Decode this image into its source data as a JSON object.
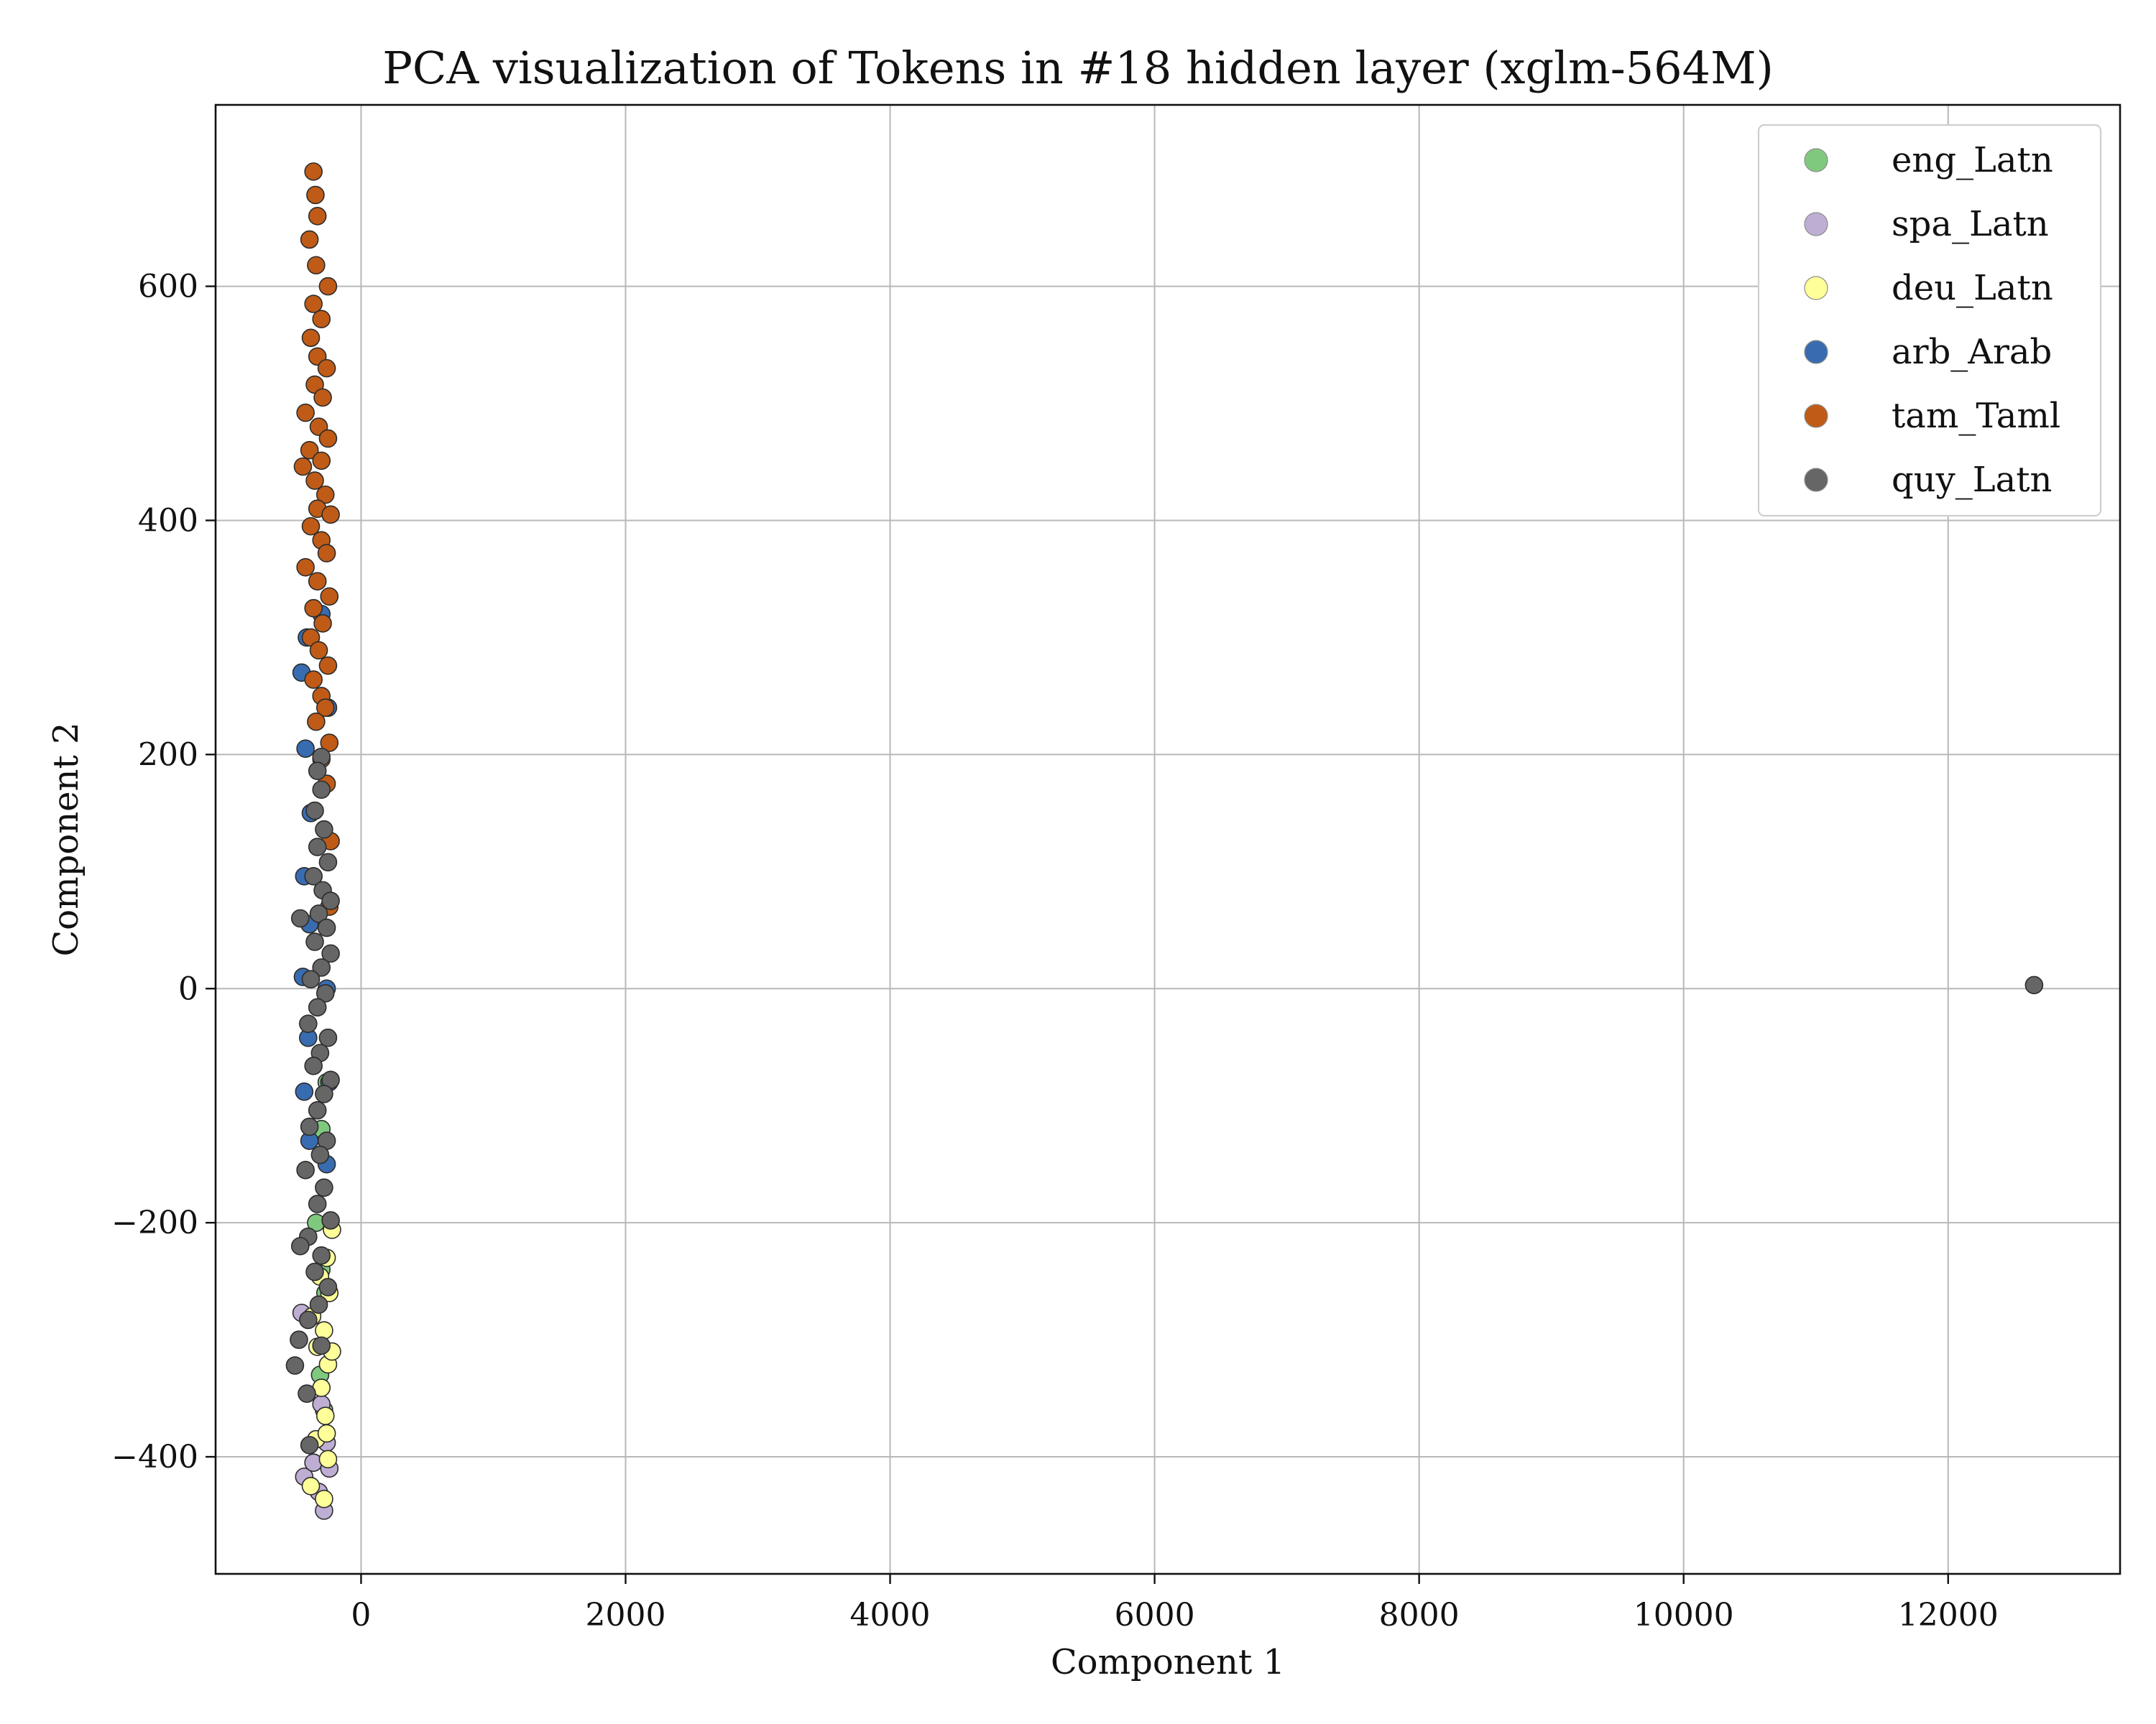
{
  "chart_data": {
    "type": "scatter",
    "title": "PCA visualization of Tokens in #18 hidden layer (xglm-564M)",
    "xlabel": "Component 1",
    "ylabel": "Component 2",
    "xlim": [
      -1100,
      13300
    ],
    "ylim": [
      -500,
      755
    ],
    "x_ticks": [
      0,
      2000,
      4000,
      6000,
      8000,
      10000,
      12000
    ],
    "x_tick_labels": [
      "0",
      "2000",
      "4000",
      "6000",
      "8000",
      "10000",
      "12000"
    ],
    "y_ticks": [
      -400,
      -200,
      0,
      200,
      400,
      600
    ],
    "y_tick_labels": [
      "−400",
      "−200",
      "0",
      "200",
      "400",
      "600"
    ],
    "grid": true,
    "legend_position": "top-right",
    "series": [
      {
        "name": "eng_Latn",
        "color": "#7fc97f",
        "points": [
          [
            -300,
            -120
          ],
          [
            -340,
            -200
          ],
          [
            -270,
            -260
          ],
          [
            -310,
            -330
          ],
          [
            -280,
            -360
          ],
          [
            -300,
            -240
          ],
          [
            -260,
            -80
          ]
        ]
      },
      {
        "name": "spa_Latn",
        "color": "#beaed4",
        "points": [
          [
            -430,
            -417
          ],
          [
            -360,
            -405
          ],
          [
            -280,
            -446
          ],
          [
            -320,
            -430
          ],
          [
            -240,
            -410
          ],
          [
            -450,
            -277
          ],
          [
            -260,
            -388
          ],
          [
            -300,
            -355
          ]
        ]
      },
      {
        "name": "deu_Latn",
        "color": "#ffff99",
        "points": [
          [
            -280,
            -436
          ],
          [
            -380,
            -425
          ],
          [
            -250,
            -402
          ],
          [
            -340,
            -385
          ],
          [
            -270,
            -365
          ],
          [
            -300,
            -341
          ],
          [
            -250,
            -321
          ],
          [
            -330,
            -306
          ],
          [
            -280,
            -292
          ],
          [
            -370,
            -280
          ],
          [
            -240,
            -260
          ],
          [
            -310,
            -246
          ],
          [
            -260,
            -230
          ],
          [
            -220,
            -206
          ],
          [
            -260,
            -380
          ],
          [
            -220,
            -310
          ]
        ]
      },
      {
        "name": "arb_Arab",
        "color": "#386cb0",
        "points": [
          [
            -450,
            270
          ],
          [
            -420,
            205
          ],
          [
            -380,
            150
          ],
          [
            -430,
            96
          ],
          [
            -390,
            55
          ],
          [
            -440,
            10
          ],
          [
            -400,
            -42
          ],
          [
            -430,
            -88
          ],
          [
            -390,
            -130
          ],
          [
            -260,
            -150
          ],
          [
            -250,
            240
          ],
          [
            -300,
            320
          ],
          [
            -410,
            300
          ],
          [
            -260,
            0
          ],
          [
            -240,
            -80
          ]
        ]
      },
      {
        "name": "tam_Taml",
        "color": "#bf5b17",
        "points": [
          [
            -360,
            698
          ],
          [
            -345,
            678
          ],
          [
            -330,
            660
          ],
          [
            -390,
            640
          ],
          [
            -340,
            618
          ],
          [
            -250,
            600
          ],
          [
            -360,
            585
          ],
          [
            -300,
            572
          ],
          [
            -380,
            556
          ],
          [
            -330,
            540
          ],
          [
            -260,
            530
          ],
          [
            -350,
            516
          ],
          [
            -290,
            505
          ],
          [
            -420,
            492
          ],
          [
            -320,
            480
          ],
          [
            -250,
            470
          ],
          [
            -390,
            460
          ],
          [
            -300,
            451
          ],
          [
            -440,
            446
          ],
          [
            -350,
            434
          ],
          [
            -270,
            422
          ],
          [
            -330,
            410
          ],
          [
            -230,
            405
          ],
          [
            -380,
            395
          ],
          [
            -300,
            383
          ],
          [
            -260,
            372
          ],
          [
            -420,
            360
          ],
          [
            -330,
            348
          ],
          [
            -240,
            335
          ],
          [
            -360,
            325
          ],
          [
            -290,
            312
          ],
          [
            -380,
            300
          ],
          [
            -320,
            289
          ],
          [
            -250,
            276
          ],
          [
            -360,
            264
          ],
          [
            -300,
            250
          ],
          [
            -270,
            240
          ],
          [
            -340,
            228
          ],
          [
            -240,
            210
          ],
          [
            -300,
            196
          ],
          [
            -260,
            175
          ],
          [
            -230,
            126
          ],
          [
            -240,
            70
          ]
        ]
      },
      {
        "name": "quy_Latn",
        "color": "#666666",
        "points": [
          [
            12650,
            3
          ],
          [
            -300,
            198
          ],
          [
            -330,
            186
          ],
          [
            -300,
            170
          ],
          [
            -350,
            152
          ],
          [
            -280,
            136
          ],
          [
            -330,
            121
          ],
          [
            -250,
            108
          ],
          [
            -360,
            96
          ],
          [
            -290,
            84
          ],
          [
            -230,
            75
          ],
          [
            -320,
            64
          ],
          [
            -460,
            60
          ],
          [
            -260,
            52
          ],
          [
            -350,
            40
          ],
          [
            -230,
            30
          ],
          [
            -300,
            18
          ],
          [
            -380,
            8
          ],
          [
            -270,
            -4
          ],
          [
            -330,
            -16
          ],
          [
            -400,
            -30
          ],
          [
            -250,
            -42
          ],
          [
            -310,
            -55
          ],
          [
            -360,
            -66
          ],
          [
            -230,
            -78
          ],
          [
            -280,
            -90
          ],
          [
            -330,
            -104
          ],
          [
            -390,
            -118
          ],
          [
            -260,
            -130
          ],
          [
            -310,
            -142
          ],
          [
            -420,
            -155
          ],
          [
            -280,
            -170
          ],
          [
            -330,
            -184
          ],
          [
            -230,
            -198
          ],
          [
            -400,
            -212
          ],
          [
            -460,
            -220
          ],
          [
            -300,
            -228
          ],
          [
            -350,
            -242
          ],
          [
            -250,
            -255
          ],
          [
            -320,
            -270
          ],
          [
            -400,
            -283
          ],
          [
            -470,
            -300
          ],
          [
            -300,
            -305
          ],
          [
            -500,
            -322
          ],
          [
            -410,
            -346
          ],
          [
            -390,
            -390
          ]
        ]
      }
    ]
  }
}
